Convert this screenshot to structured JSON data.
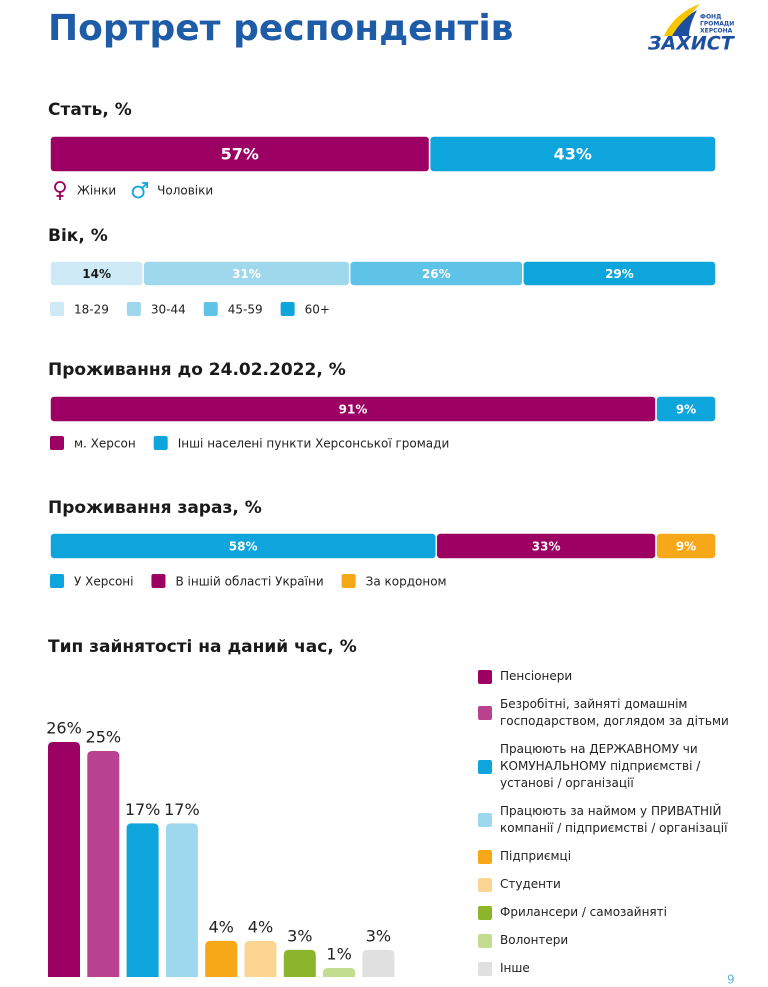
{
  "title": "Портрет респондентів",
  "logo": {
    "lines": [
      "ФОНД",
      "ГРОМАДИ",
      "ХЕРСОНА"
    ],
    "name": "ЗАХИСТ"
  },
  "page_number": 9,
  "chart_data": [
    {
      "type": "stacked_bar",
      "title": "Стать, %",
      "xlim": [
        0,
        100
      ],
      "series": [
        {
          "name": "Жінки",
          "color": "#9b0062",
          "values": [
            57
          ],
          "value_labels": [
            "57%"
          ]
        },
        {
          "name": "Чоловіки",
          "color": "#0ea5dc",
          "values": [
            43
          ],
          "value_labels": [
            "43%"
          ]
        }
      ]
    },
    {
      "type": "stacked_bar",
      "title": "Вік, %",
      "xlim": [
        0,
        100
      ],
      "series": [
        {
          "name": "18-29",
          "color": "#cdeaf6",
          "values": [
            14
          ],
          "value_labels": [
            "14%"
          ]
        },
        {
          "name": "30-44",
          "color": "#9fd8ed",
          "values": [
            31
          ],
          "value_labels": [
            "31%"
          ]
        },
        {
          "name": "45-59",
          "color": "#5fc3e8",
          "values": [
            26
          ],
          "value_labels": [
            "26%"
          ]
        },
        {
          "name": "60+",
          "color": "#0ea5dc",
          "values": [
            29
          ],
          "value_labels": [
            "29%"
          ]
        }
      ]
    },
    {
      "type": "stacked_bar",
      "title": "Проживання до 24.02.2022, %",
      "xlim": [
        0,
        100
      ],
      "series": [
        {
          "name": "м. Херсон",
          "color": "#9b0062",
          "values": [
            91
          ],
          "value_labels": [
            "91%"
          ]
        },
        {
          "name": "Інші населені пункти Херсонської громади",
          "color": "#0ea5dc",
          "values": [
            9
          ],
          "value_labels": [
            "9%"
          ]
        }
      ]
    },
    {
      "type": "stacked_bar",
      "title": "Проживання зараз, %",
      "xlim": [
        0,
        100
      ],
      "series": [
        {
          "name": "У Херсоні",
          "color": "#0ea5dc",
          "values": [
            58
          ],
          "value_labels": [
            "58%"
          ]
        },
        {
          "name": "В іншій області України",
          "color": "#9b0062",
          "values": [
            33
          ],
          "value_labels": [
            "33%"
          ]
        },
        {
          "name": "За кордоном",
          "color": "#f7a818",
          "values": [
            9
          ],
          "value_labels": [
            "9%"
          ]
        }
      ]
    },
    {
      "type": "bar",
      "title": "Тип зайнятості на даний час, %",
      "ylim": [
        0,
        26
      ],
      "categories": [
        "Пенсіонери",
        "Безробітні, зайняті домашнім господарством, доглядом за дітьми",
        "Працюють на ДЕРЖАВНОМУ чи КОМУНАЛЬНОМУ підприємстві / установі / організації",
        "Працюють за наймом у ПРИВАТНІЙ компанії / підприємстві / організації",
        "Підприємці",
        "Студенти",
        "Фрилансери / самозайняті",
        "Волонтери",
        "Інше"
      ],
      "values": [
        26,
        25,
        17,
        17,
        4,
        4,
        3,
        1,
        3
      ],
      "value_labels": [
        "26%",
        "25%",
        "17%",
        "17%",
        "4%",
        "4%",
        "3%",
        "1%",
        "3%"
      ],
      "colors": [
        "#9b0062",
        "#b8428f",
        "#0ea5dc",
        "#9ed8ee",
        "#f7a818",
        "#fcd592",
        "#8db52b",
        "#c3dd90",
        "#e0e0e0"
      ]
    }
  ]
}
